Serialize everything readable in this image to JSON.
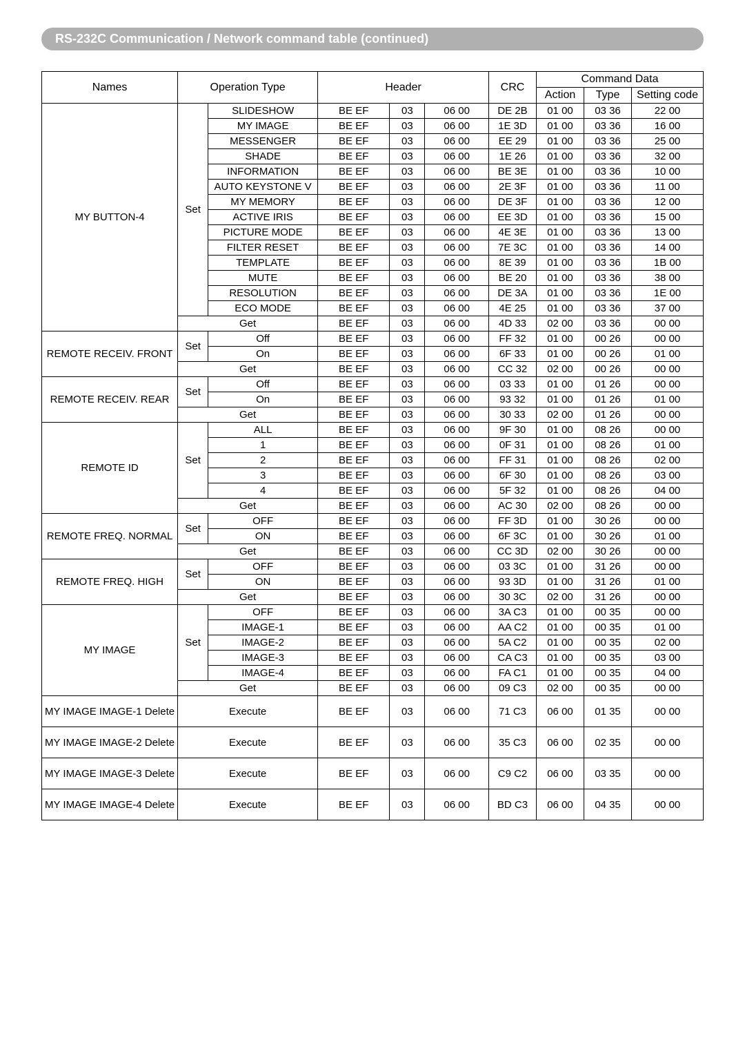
{
  "title": "RS-232C Communication / Network command table (continued)",
  "headers": {
    "names": "Names",
    "operation": "Operation Type",
    "header": "Header",
    "crc": "CRC",
    "commandData": "Command Data",
    "action": "Action",
    "type": "Type",
    "setting": "Setting code"
  },
  "groups": [
    {
      "name": "MY BUTTON-4",
      "rows": [
        {
          "op1": "Set",
          "op1span": 14,
          "op2": "SLIDESHOW",
          "h1": "BE  EF",
          "h2": "03",
          "h3": "06  00",
          "crc": "DE  2B",
          "act": "01  00",
          "type": "03  36",
          "set": "22  00"
        },
        {
          "op2": "MY IMAGE",
          "h1": "BE  EF",
          "h2": "03",
          "h3": "06  00",
          "crc": "1E  3D",
          "act": "01  00",
          "type": "03  36",
          "set": "16  00"
        },
        {
          "op2": "MESSENGER",
          "h1": "BE  EF",
          "h2": "03",
          "h3": "06  00",
          "crc": "EE  29",
          "act": "01  00",
          "type": "03  36",
          "set": "25  00"
        },
        {
          "op2": "SHADE",
          "h1": "BE  EF",
          "h2": "03",
          "h3": "06  00",
          "crc": "1E  26",
          "act": "01  00",
          "type": "03  36",
          "set": "32  00"
        },
        {
          "op2": "INFORMATION",
          "h1": "BE  EF",
          "h2": "03",
          "h3": "06  00",
          "crc": "BE  3E",
          "act": "01  00",
          "type": "03  36",
          "set": "10  00"
        },
        {
          "op2": "AUTO KEYSTONE V",
          "h1": "BE  EF",
          "h2": "03",
          "h3": "06  00",
          "crc": "2E  3F",
          "act": "01  00",
          "type": "03  36",
          "set": "11  00"
        },
        {
          "op2": "MY MEMORY",
          "h1": "BE  EF",
          "h2": "03",
          "h3": "06  00",
          "crc": "DE  3F",
          "act": "01  00",
          "type": "03  36",
          "set": "12  00"
        },
        {
          "op2": "ACTIVE IRIS",
          "h1": "BE  EF",
          "h2": "03",
          "h3": "06  00",
          "crc": "EE  3D",
          "act": "01  00",
          "type": "03  36",
          "set": "15  00"
        },
        {
          "op2": "PICTURE MODE",
          "h1": "BE  EF",
          "h2": "03",
          "h3": "06  00",
          "crc": "4E  3E",
          "act": "01  00",
          "type": "03  36",
          "set": "13  00"
        },
        {
          "op2": "FILTER RESET",
          "h1": "BE  EF",
          "h2": "03",
          "h3": "06  00",
          "crc": "7E  3C",
          "act": "01  00",
          "type": "03  36",
          "set": "14  00"
        },
        {
          "op2": "TEMPLATE",
          "h1": "BE  EF",
          "h2": "03",
          "h3": "06  00",
          "crc": "8E  39",
          "act": "01  00",
          "type": "03  36",
          "set": "1B  00"
        },
        {
          "op2": "MUTE",
          "h1": "BE  EF",
          "h2": "03",
          "h3": "06  00",
          "crc": "BE  20",
          "act": "01  00",
          "type": "03  36",
          "set": "38  00"
        },
        {
          "op2": "RESOLUTION",
          "h1": "BE  EF",
          "h2": "03",
          "h3": "06  00",
          "crc": "DE  3A",
          "act": "01  00",
          "type": "03  36",
          "set": "1E  00"
        },
        {
          "op2": "ECO MODE",
          "h1": "BE  EF",
          "h2": "03",
          "h3": "06  00",
          "crc": "4E  25",
          "act": "01  00",
          "type": "03  36",
          "set": "37  00"
        },
        {
          "op2": "Get",
          "op2span": 2,
          "h1": "BE  EF",
          "h2": "03",
          "h3": "06  00",
          "crc": "4D  33",
          "act": "02  00",
          "type": "03  36",
          "set": "00  00"
        }
      ]
    },
    {
      "name": "REMOTE RECEIV. FRONT",
      "rows": [
        {
          "op1": "Set",
          "op1span": 2,
          "op2": "Off",
          "h1": "BE  EF",
          "h2": "03",
          "h3": "06  00",
          "crc": "FF  32",
          "act": "01  00",
          "type": "00  26",
          "set": "00  00"
        },
        {
          "op2": "On",
          "h1": "BE  EF",
          "h2": "03",
          "h3": "06  00",
          "crc": "6F  33",
          "act": "01  00",
          "type": "00  26",
          "set": "01  00"
        },
        {
          "op2": "Get",
          "op2span": 2,
          "h1": "BE  EF",
          "h2": "03",
          "h3": "06  00",
          "crc": "CC  32",
          "act": "02  00",
          "type": "00  26",
          "set": "00  00"
        }
      ]
    },
    {
      "name": "REMOTE RECEIV. REAR",
      "rows": [
        {
          "op1": "Set",
          "op1span": 2,
          "op2": "Off",
          "h1": "BE  EF",
          "h2": "03",
          "h3": "06  00",
          "crc": "03  33",
          "act": "01  00",
          "type": "01  26",
          "set": "00  00"
        },
        {
          "op2": "On",
          "h1": "BE  EF",
          "h2": "03",
          "h3": "06  00",
          "crc": "93  32",
          "act": "01  00",
          "type": "01  26",
          "set": "01  00"
        },
        {
          "op2": "Get",
          "op2span": 2,
          "h1": "BE  EF",
          "h2": "03",
          "h3": "06  00",
          "crc": "30  33",
          "act": "02  00",
          "type": "01  26",
          "set": "00  00"
        }
      ]
    },
    {
      "name": "REMOTE ID",
      "rows": [
        {
          "op1": "Set",
          "op1span": 5,
          "op2": "ALL",
          "h1": "BE  EF",
          "h2": "03",
          "h3": "06  00",
          "crc": "9F  30",
          "act": "01  00",
          "type": "08  26",
          "set": "00  00"
        },
        {
          "op2": "1",
          "h1": "BE  EF",
          "h2": "03",
          "h3": "06  00",
          "crc": "0F  31",
          "act": "01  00",
          "type": "08  26",
          "set": "01  00"
        },
        {
          "op2": "2",
          "h1": "BE  EF",
          "h2": "03",
          "h3": "06  00",
          "crc": "FF  31",
          "act": "01  00",
          "type": "08  26",
          "set": "02  00"
        },
        {
          "op2": "3",
          "h1": "BE  EF",
          "h2": "03",
          "h3": "06  00",
          "crc": "6F  30",
          "act": "01  00",
          "type": "08  26",
          "set": "03  00"
        },
        {
          "op2": "4",
          "h1": "BE  EF",
          "h2": "03",
          "h3": "06  00",
          "crc": "5F  32",
          "act": "01  00",
          "type": "08  26",
          "set": "04  00"
        },
        {
          "op2": "Get",
          "op2span": 2,
          "h1": "BE  EF",
          "h2": "03",
          "h3": "06  00",
          "crc": "AC  30",
          "act": "02  00",
          "type": "08  26",
          "set": "00  00"
        }
      ]
    },
    {
      "name": "REMOTE FREQ. NORMAL",
      "rows": [
        {
          "op1": "Set",
          "op1span": 2,
          "op2": "OFF",
          "h1": "BE  EF",
          "h2": "03",
          "h3": "06  00",
          "crc": "FF  3D",
          "act": "01  00",
          "type": "30  26",
          "set": "00  00"
        },
        {
          "op2": "ON",
          "h1": "BE  EF",
          "h2": "03",
          "h3": "06  00",
          "crc": "6F  3C",
          "act": "01  00",
          "type": "30  26",
          "set": "01  00"
        },
        {
          "op2": "Get",
          "op2span": 2,
          "h1": "BE  EF",
          "h2": "03",
          "h3": "06  00",
          "crc": "CC  3D",
          "act": "02  00",
          "type": "30  26",
          "set": "00  00"
        }
      ]
    },
    {
      "name": "REMOTE FREQ. HIGH",
      "rows": [
        {
          "op1": "Set",
          "op1span": 2,
          "op2": "OFF",
          "h1": "BE  EF",
          "h2": "03",
          "h3": "06  00",
          "crc": "03  3C",
          "act": "01  00",
          "type": "31  26",
          "set": "00  00"
        },
        {
          "op2": "ON",
          "h1": "BE  EF",
          "h2": "03",
          "h3": "06  00",
          "crc": "93  3D",
          "act": "01  00",
          "type": "31  26",
          "set": "01  00"
        },
        {
          "op2": "Get",
          "op2span": 2,
          "h1": "BE  EF",
          "h2": "03",
          "h3": "06  00",
          "crc": "30  3C",
          "act": "02  00",
          "type": "31  26",
          "set": "00  00"
        }
      ]
    },
    {
      "name": "MY IMAGE",
      "rows": [
        {
          "op1": "Set",
          "op1span": 5,
          "op2": "OFF",
          "h1": "BE  EF",
          "h2": "03",
          "h3": "06  00",
          "crc": "3A  C3",
          "act": "01  00",
          "type": "00  35",
          "set": "00  00"
        },
        {
          "op2": "IMAGE-1",
          "h1": "BE  EF",
          "h2": "03",
          "h3": "06  00",
          "crc": "AA  C2",
          "act": "01  00",
          "type": "00  35",
          "set": "01  00"
        },
        {
          "op2": "IMAGE-2",
          "h1": "BE  EF",
          "h2": "03",
          "h3": "06  00",
          "crc": "5A  C2",
          "act": "01  00",
          "type": "00  35",
          "set": "02  00"
        },
        {
          "op2": "IMAGE-3",
          "h1": "BE  EF",
          "h2": "03",
          "h3": "06  00",
          "crc": "CA  C3",
          "act": "01  00",
          "type": "00  35",
          "set": "03  00"
        },
        {
          "op2": "IMAGE-4",
          "h1": "BE  EF",
          "h2": "03",
          "h3": "06  00",
          "crc": "FA  C1",
          "act": "01  00",
          "type": "00  35",
          "set": "04  00"
        },
        {
          "op2": "Get",
          "op2span": 2,
          "h1": "BE  EF",
          "h2": "03",
          "h3": "06  00",
          "crc": "09  C3",
          "act": "02  00",
          "type": "00  35",
          "set": "00  00"
        }
      ]
    },
    {
      "name": "MY IMAGE IMAGE-1 Delete",
      "tall": true,
      "rows": [
        {
          "op2": "Execute",
          "op2span": 2,
          "h1": "BE  EF",
          "h2": "03",
          "h3": "06  00",
          "crc": "71  C3",
          "act": "06  00",
          "type": "01  35",
          "set": "00  00"
        }
      ]
    },
    {
      "name": "MY IMAGE IMAGE-2 Delete",
      "tall": true,
      "rows": [
        {
          "op2": "Execute",
          "op2span": 2,
          "h1": "BE  EF",
          "h2": "03",
          "h3": "06  00",
          "crc": "35  C3",
          "act": "06  00",
          "type": "02  35",
          "set": "00  00"
        }
      ]
    },
    {
      "name": "MY IMAGE IMAGE-3 Delete",
      "tall": true,
      "rows": [
        {
          "op2": "Execute",
          "op2span": 2,
          "h1": "BE  EF",
          "h2": "03",
          "h3": "06  00",
          "crc": "C9  C2",
          "act": "06  00",
          "type": "03  35",
          "set": "00  00"
        }
      ]
    },
    {
      "name": "MY IMAGE IMAGE-4 Delete",
      "tall": true,
      "rows": [
        {
          "op2": "Execute",
          "op2span": 2,
          "h1": "BE  EF",
          "h2": "03",
          "h3": "06  00",
          "crc": "BD  C3",
          "act": "06  00",
          "type": "04  35",
          "set": "00  00"
        }
      ]
    }
  ]
}
